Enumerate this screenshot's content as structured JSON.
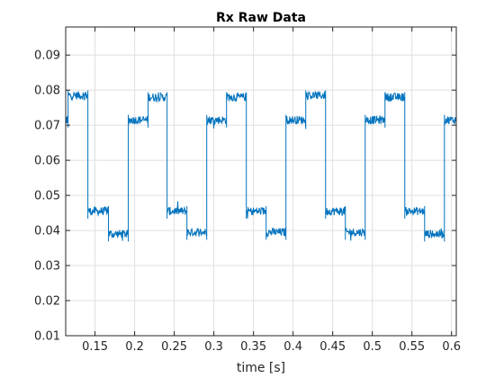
{
  "chart_data": {
    "type": "line",
    "title": "Rx Raw Data",
    "xlabel": "time [s]",
    "ylabel": "",
    "xlim": [
      0.113,
      0.606
    ],
    "ylim": [
      0.01,
      0.098
    ],
    "xticks": [
      0.15,
      0.2,
      0.25,
      0.3,
      0.35,
      0.4,
      0.45,
      0.5,
      0.55,
      0.6
    ],
    "xtick_labels": [
      "0.15",
      "0.2",
      "0.25",
      "0.3",
      "0.35",
      "0.4",
      "0.45",
      "0.5",
      "0.55",
      "0.6"
    ],
    "yticks": [
      0.01,
      0.02,
      0.03,
      0.04,
      0.05,
      0.06,
      0.07,
      0.08,
      0.09
    ],
    "ytick_labels": [
      "0.01",
      "0.02",
      "0.03",
      "0.04",
      "0.05",
      "0.06",
      "0.07",
      "0.08",
      "0.09"
    ],
    "grid": true,
    "series": [
      {
        "color": "#0072BD",
        "noise_amplitude": 0.0012,
        "segments": [
          {
            "x_start": 0.113,
            "x_end": 0.116,
            "level": 0.0715
          },
          {
            "x_start": 0.116,
            "x_end": 0.141,
            "level": 0.0785
          },
          {
            "x_start": 0.141,
            "x_end": 0.167,
            "level": 0.0455
          },
          {
            "x_start": 0.167,
            "x_end": 0.192,
            "level": 0.039
          },
          {
            "x_start": 0.192,
            "x_end": 0.217,
            "level": 0.0715
          },
          {
            "x_start": 0.217,
            "x_end": 0.241,
            "level": 0.078
          },
          {
            "x_start": 0.241,
            "x_end": 0.266,
            "level": 0.0455
          },
          {
            "x_start": 0.266,
            "x_end": 0.291,
            "level": 0.0395
          },
          {
            "x_start": 0.291,
            "x_end": 0.316,
            "level": 0.0715
          },
          {
            "x_start": 0.316,
            "x_end": 0.341,
            "level": 0.078
          },
          {
            "x_start": 0.341,
            "x_end": 0.366,
            "level": 0.0455
          },
          {
            "x_start": 0.366,
            "x_end": 0.391,
            "level": 0.0395
          },
          {
            "x_start": 0.391,
            "x_end": 0.416,
            "level": 0.0715
          },
          {
            "x_start": 0.416,
            "x_end": 0.441,
            "level": 0.0785
          },
          {
            "x_start": 0.441,
            "x_end": 0.466,
            "level": 0.0455
          },
          {
            "x_start": 0.466,
            "x_end": 0.491,
            "level": 0.0395
          },
          {
            "x_start": 0.491,
            "x_end": 0.516,
            "level": 0.0715
          },
          {
            "x_start": 0.516,
            "x_end": 0.541,
            "level": 0.078
          },
          {
            "x_start": 0.541,
            "x_end": 0.566,
            "level": 0.0455
          },
          {
            "x_start": 0.566,
            "x_end": 0.591,
            "level": 0.039
          },
          {
            "x_start": 0.591,
            "x_end": 0.606,
            "level": 0.0715
          }
        ]
      }
    ]
  }
}
